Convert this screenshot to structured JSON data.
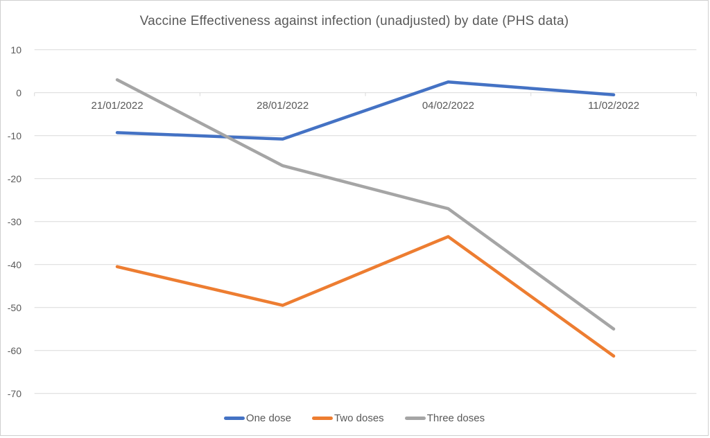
{
  "window": {
    "background": "#FFFFFF",
    "border_color": "#CFCFCF"
  },
  "chart": {
    "title_color": "#595959",
    "axis_text_color": "#595959",
    "gridline_color": "#D9D9D9",
    "axis_line_color": "#D9D9D9"
  },
  "chart_data": {
    "type": "line",
    "title": "Vaccine Effectiveness against infection (unadjusted) by date (PHS data)",
    "xlabel": "",
    "ylabel": "",
    "categories": [
      "21/01/2022",
      "28/01/2022",
      "04/02/2022",
      "11/02/2022"
    ],
    "series": [
      {
        "name": "One dose",
        "color": "#4472C4",
        "values": [
          -9.3,
          -10.8,
          2.5,
          -0.5
        ]
      },
      {
        "name": "Two doses",
        "color": "#ED7D31",
        "values": [
          -40.5,
          -49.5,
          -33.5,
          -61.3
        ]
      },
      {
        "name": "Three doses",
        "color": "#A5A5A5",
        "values": [
          3,
          -17,
          -27,
          -55
        ]
      }
    ],
    "ylim": [
      -70,
      10
    ],
    "yticks": [
      10,
      0,
      -10,
      -20,
      -30,
      -40,
      -50,
      -60,
      -70
    ],
    "grid": true,
    "legend_position": "bottom"
  }
}
